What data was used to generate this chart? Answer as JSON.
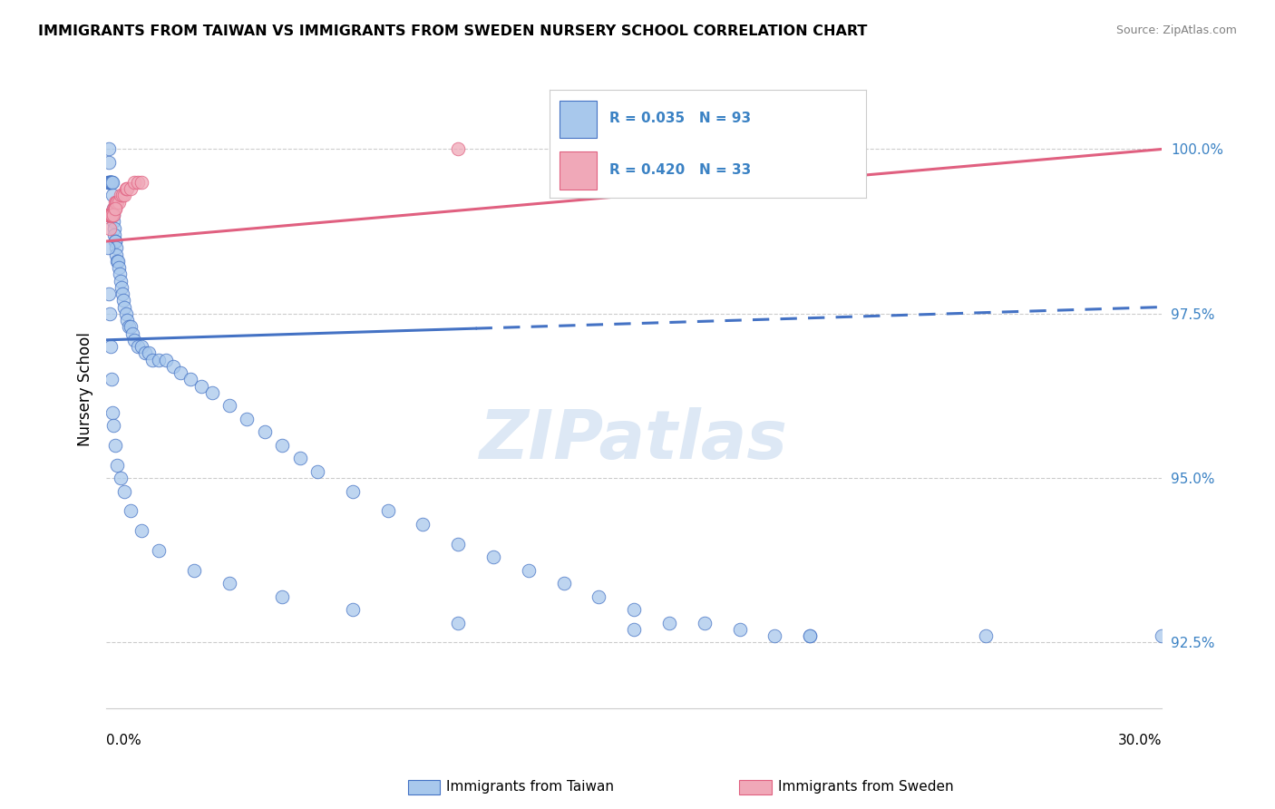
{
  "title": "IMMIGRANTS FROM TAIWAN VS IMMIGRANTS FROM SWEDEN NURSERY SCHOOL CORRELATION CHART",
  "source": "Source: ZipAtlas.com",
  "ylabel": "Nursery School",
  "xlim": [
    0.0,
    30.0
  ],
  "ylim": [
    91.5,
    101.2
  ],
  "yticks": [
    92.5,
    95.0,
    97.5,
    100.0
  ],
  "ytick_labels": [
    "92.5%",
    "95.0%",
    "97.5%",
    "100.0%"
  ],
  "legend_taiwan": "Immigrants from Taiwan",
  "legend_sweden": "Immigrants from Sweden",
  "R_taiwan": 0.035,
  "N_taiwan": 93,
  "R_sweden": 0.42,
  "N_sweden": 33,
  "color_taiwan": "#A8C8EC",
  "color_sweden": "#F0A8B8",
  "line_color_taiwan": "#4472C4",
  "line_color_sweden": "#E06080",
  "taiwan_x": [
    0.05,
    0.06,
    0.07,
    0.08,
    0.09,
    0.1,
    0.11,
    0.12,
    0.13,
    0.14,
    0.15,
    0.16,
    0.17,
    0.18,
    0.19,
    0.2,
    0.21,
    0.22,
    0.23,
    0.24,
    0.25,
    0.27,
    0.28,
    0.3,
    0.32,
    0.35,
    0.38,
    0.4,
    0.43,
    0.45,
    0.48,
    0.5,
    0.55,
    0.6,
    0.65,
    0.7,
    0.75,
    0.8,
    0.9,
    1.0,
    1.1,
    1.2,
    1.3,
    1.5,
    1.7,
    1.9,
    2.1,
    2.4,
    2.7,
    3.0,
    3.5,
    4.0,
    4.5,
    5.0,
    5.5,
    6.0,
    7.0,
    8.0,
    9.0,
    10.0,
    11.0,
    12.0,
    13.0,
    14.0,
    15.0,
    16.0,
    17.0,
    18.0,
    19.0,
    20.0,
    0.05,
    0.08,
    0.1,
    0.12,
    0.15,
    0.18,
    0.2,
    0.25,
    0.3,
    0.4,
    0.5,
    0.7,
    1.0,
    1.5,
    2.5,
    3.5,
    5.0,
    7.0,
    10.0,
    15.0,
    20.0,
    25.0,
    30.0
  ],
  "taiwan_y": [
    99.5,
    99.8,
    99.5,
    100.0,
    99.5,
    99.5,
    99.5,
    99.5,
    99.5,
    99.5,
    99.5,
    99.5,
    99.5,
    99.3,
    99.1,
    99.0,
    98.9,
    98.8,
    98.7,
    98.6,
    98.6,
    98.5,
    98.4,
    98.3,
    98.3,
    98.2,
    98.1,
    98.0,
    97.9,
    97.8,
    97.7,
    97.6,
    97.5,
    97.4,
    97.3,
    97.3,
    97.2,
    97.1,
    97.0,
    97.0,
    96.9,
    96.9,
    96.8,
    96.8,
    96.8,
    96.7,
    96.6,
    96.5,
    96.4,
    96.3,
    96.1,
    95.9,
    95.7,
    95.5,
    95.3,
    95.1,
    94.8,
    94.5,
    94.3,
    94.0,
    93.8,
    93.6,
    93.4,
    93.2,
    93.0,
    92.8,
    92.8,
    92.7,
    92.6,
    92.6,
    98.5,
    97.8,
    97.5,
    97.0,
    96.5,
    96.0,
    95.8,
    95.5,
    95.2,
    95.0,
    94.8,
    94.5,
    94.2,
    93.9,
    93.6,
    93.4,
    93.2,
    93.0,
    92.8,
    92.7,
    92.6,
    92.6,
    92.6
  ],
  "sweden_x": [
    0.05,
    0.06,
    0.07,
    0.08,
    0.09,
    0.1,
    0.11,
    0.12,
    0.13,
    0.15,
    0.17,
    0.18,
    0.2,
    0.22,
    0.24,
    0.25,
    0.28,
    0.3,
    0.35,
    0.4,
    0.45,
    0.5,
    0.55,
    0.6,
    0.7,
    0.8,
    0.9,
    1.0,
    0.1,
    0.15,
    0.2,
    0.25,
    10.0
  ],
  "sweden_y": [
    99.0,
    99.0,
    99.0,
    99.0,
    99.0,
    99.0,
    99.0,
    99.0,
    99.0,
    99.0,
    99.0,
    99.0,
    99.1,
    99.1,
    99.1,
    99.2,
    99.2,
    99.2,
    99.2,
    99.3,
    99.3,
    99.3,
    99.4,
    99.4,
    99.4,
    99.5,
    99.5,
    99.5,
    98.8,
    99.0,
    99.0,
    99.1,
    100.0
  ],
  "tw_line_x0": 0.0,
  "tw_line_x1": 30.0,
  "tw_line_y0": 97.1,
  "tw_line_y1": 97.6,
  "tw_solid_x1": 10.5,
  "sw_line_x0": 0.0,
  "sw_line_x1": 30.0,
  "sw_line_y0": 98.6,
  "sw_line_y1": 100.0
}
